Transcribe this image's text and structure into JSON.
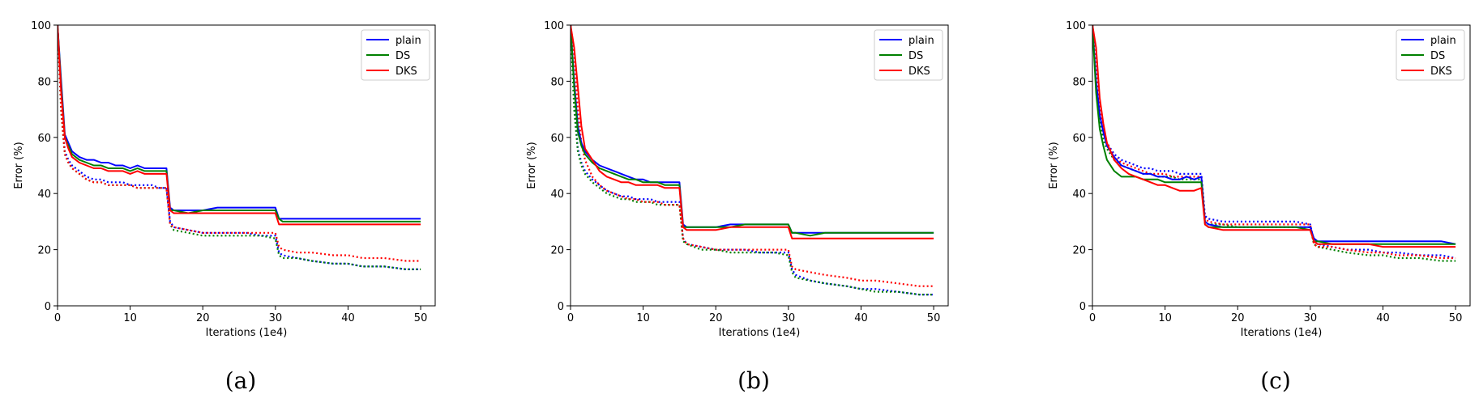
{
  "chart_data": [
    {
      "type": "line",
      "caption": "(a)",
      "xlabel": "Iterations (1e4)",
      "ylabel": "Error (%)",
      "xlim": [
        0,
        52
      ],
      "ylim": [
        0,
        100
      ],
      "xticks": [
        "0",
        "10",
        "20",
        "30",
        "40",
        "50"
      ],
      "yticks": [
        "0",
        "20",
        "40",
        "60",
        "80",
        "100"
      ],
      "legend": {
        "position": "top-right",
        "entries": [
          "plain",
          "DS",
          "DKS"
        ]
      },
      "colors": {
        "plain": "#0000ff",
        "DS": "#008000",
        "DKS": "#ff0000"
      },
      "x": [
        0,
        0.5,
        1,
        1.5,
        2,
        3,
        4,
        5,
        6,
        7,
        8,
        9,
        10,
        11,
        12,
        13,
        14,
        15,
        15.5,
        16,
        18,
        20,
        22,
        24,
        26,
        28,
        30,
        30.5,
        31,
        33,
        35,
        38,
        40,
        42,
        45,
        48,
        50
      ],
      "series": [
        {
          "name": "plain",
          "style": "solid",
          "values": [
            100,
            80,
            61,
            58,
            55,
            53,
            52,
            52,
            51,
            51,
            50,
            50,
            49,
            50,
            49,
            49,
            49,
            49,
            35,
            34,
            34,
            34,
            35,
            35,
            35,
            35,
            35,
            31,
            31,
            31,
            31,
            31,
            31,
            31,
            31,
            31,
            31
          ]
        },
        {
          "name": "DS",
          "style": "solid",
          "values": [
            100,
            78,
            60,
            57,
            54,
            52,
            51,
            50,
            50,
            49,
            49,
            49,
            48,
            49,
            48,
            48,
            48,
            48,
            34,
            34,
            33,
            34,
            34,
            34,
            34,
            34,
            34,
            31,
            30,
            30,
            30,
            30,
            30,
            30,
            30,
            30,
            30
          ]
        },
        {
          "name": "DKS",
          "style": "solid",
          "values": [
            100,
            76,
            60,
            56,
            53,
            51,
            50,
            49,
            49,
            48,
            48,
            48,
            47,
            48,
            47,
            47,
            47,
            47,
            34,
            33,
            33,
            33,
            33,
            33,
            33,
            33,
            33,
            29,
            29,
            29,
            29,
            29,
            29,
            29,
            29,
            29,
            29
          ]
        },
        {
          "name": "plain",
          "style": "dotted",
          "values": [
            100,
            70,
            55,
            52,
            50,
            48,
            46,
            45,
            45,
            44,
            44,
            44,
            43,
            43,
            43,
            43,
            42,
            42,
            30,
            28,
            27,
            26,
            26,
            26,
            26,
            25,
            25,
            19,
            18,
            17,
            16,
            15,
            15,
            14,
            14,
            13,
            13
          ]
        },
        {
          "name": "DS",
          "style": "dotted",
          "values": [
            100,
            69,
            54,
            51,
            49,
            47,
            45,
            44,
            44,
            43,
            43,
            43,
            43,
            42,
            42,
            42,
            42,
            42,
            29,
            27,
            26,
            25,
            25,
            25,
            25,
            25,
            24,
            18,
            17,
            17,
            16,
            15,
            15,
            14,
            14,
            13,
            13
          ]
        },
        {
          "name": "DKS",
          "style": "dotted",
          "values": [
            100,
            70,
            54,
            51,
            49,
            47,
            45,
            44,
            44,
            43,
            43,
            43,
            43,
            42,
            42,
            42,
            42,
            42,
            29,
            28,
            27,
            26,
            26,
            26,
            26,
            26,
            26,
            21,
            20,
            19,
            19,
            18,
            18,
            17,
            17,
            16,
            16
          ]
        }
      ]
    },
    {
      "type": "line",
      "caption": "(b)",
      "xlabel": "Iterations (1e4)",
      "ylabel": "Error (%)",
      "xlim": [
        0,
        52
      ],
      "ylim": [
        0,
        100
      ],
      "xticks": [
        "0",
        "10",
        "20",
        "30",
        "40",
        "50"
      ],
      "yticks": [
        "0",
        "20",
        "40",
        "60",
        "80",
        "100"
      ],
      "legend": {
        "position": "top-right",
        "entries": [
          "plain",
          "DS",
          "DKS"
        ]
      },
      "colors": {
        "plain": "#0000ff",
        "DS": "#008000",
        "DKS": "#ff0000"
      },
      "x": [
        0,
        0.5,
        1,
        1.5,
        2,
        3,
        4,
        5,
        6,
        7,
        8,
        9,
        10,
        11,
        12,
        13,
        14,
        15,
        15.5,
        16,
        18,
        20,
        22,
        24,
        26,
        28,
        30,
        30.5,
        31,
        33,
        35,
        38,
        40,
        42,
        45,
        48,
        50
      ],
      "series": [
        {
          "name": "plain",
          "style": "solid",
          "values": [
            100,
            80,
            64,
            58,
            55,
            52,
            50,
            49,
            48,
            47,
            46,
            45,
            45,
            44,
            44,
            44,
            44,
            44,
            29,
            28,
            28,
            28,
            29,
            29,
            29,
            29,
            29,
            26,
            26,
            26,
            26,
            26,
            26,
            26,
            26,
            26,
            26
          ]
        },
        {
          "name": "DS",
          "style": "solid",
          "values": [
            100,
            78,
            62,
            57,
            54,
            51,
            49,
            48,
            47,
            46,
            45,
            45,
            44,
            44,
            44,
            43,
            43,
            43,
            28,
            28,
            28,
            28,
            28,
            29,
            29,
            29,
            29,
            26,
            26,
            25,
            26,
            26,
            26,
            26,
            26,
            26,
            26
          ]
        },
        {
          "name": "DKS",
          "style": "solid",
          "values": [
            100,
            92,
            78,
            64,
            56,
            52,
            48,
            46,
            45,
            44,
            44,
            43,
            43,
            43,
            43,
            42,
            42,
            42,
            28,
            27,
            27,
            27,
            28,
            28,
            28,
            28,
            28,
            24,
            24,
            24,
            24,
            24,
            24,
            24,
            24,
            24,
            24
          ]
        },
        {
          "name": "plain",
          "style": "dotted",
          "values": [
            100,
            72,
            56,
            51,
            48,
            45,
            43,
            41,
            40,
            39,
            39,
            38,
            38,
            38,
            37,
            37,
            37,
            37,
            24,
            22,
            21,
            20,
            20,
            20,
            19,
            19,
            19,
            13,
            11,
            9,
            8,
            7,
            6,
            6,
            5,
            4,
            4
          ]
        },
        {
          "name": "DS",
          "style": "dotted",
          "values": [
            100,
            70,
            55,
            50,
            47,
            44,
            42,
            40,
            39,
            38,
            38,
            37,
            37,
            37,
            36,
            36,
            36,
            36,
            23,
            22,
            20,
            20,
            19,
            19,
            19,
            19,
            18,
            12,
            10,
            9,
            8,
            7,
            6,
            5,
            5,
            4,
            4
          ]
        },
        {
          "name": "DKS",
          "style": "dotted",
          "values": [
            100,
            90,
            70,
            58,
            52,
            46,
            43,
            41,
            40,
            39,
            38,
            38,
            37,
            37,
            37,
            36,
            36,
            36,
            24,
            22,
            21,
            20,
            20,
            20,
            20,
            20,
            20,
            14,
            13,
            12,
            11,
            10,
            9,
            9,
            8,
            7,
            7
          ]
        }
      ]
    },
    {
      "type": "line",
      "caption": "(c)",
      "xlabel": "Iterations (1e4)",
      "ylabel": "Error (%)",
      "xlim": [
        0,
        52
      ],
      "ylim": [
        0,
        100
      ],
      "xticks": [
        "0",
        "10",
        "20",
        "30",
        "40",
        "50"
      ],
      "yticks": [
        "0",
        "20",
        "40",
        "60",
        "80",
        "100"
      ],
      "legend": {
        "position": "top-right",
        "entries": [
          "plain",
          "DS",
          "DKS"
        ]
      },
      "colors": {
        "plain": "#0000ff",
        "DS": "#008000",
        "DKS": "#ff0000"
      },
      "x": [
        0,
        0.5,
        1,
        1.5,
        2,
        3,
        4,
        5,
        6,
        7,
        8,
        9,
        10,
        11,
        12,
        13,
        14,
        15,
        15.5,
        16,
        18,
        20,
        22,
        24,
        26,
        28,
        30,
        30.5,
        31,
        33,
        35,
        38,
        40,
        42,
        45,
        48,
        50
      ],
      "series": [
        {
          "name": "plain",
          "style": "solid",
          "values": [
            100,
            80,
            68,
            62,
            57,
            53,
            50,
            49,
            48,
            47,
            47,
            46,
            46,
            45,
            45,
            46,
            45,
            46,
            30,
            29,
            28,
            28,
            28,
            28,
            28,
            28,
            28,
            24,
            23,
            23,
            23,
            23,
            23,
            23,
            23,
            23,
            22
          ]
        },
        {
          "name": "DS",
          "style": "solid",
          "values": [
            100,
            76,
            63,
            57,
            52,
            48,
            46,
            46,
            46,
            45,
            45,
            45,
            44,
            44,
            44,
            44,
            44,
            44,
            29,
            28,
            28,
            28,
            28,
            28,
            28,
            28,
            27,
            23,
            23,
            22,
            22,
            22,
            22,
            22,
            22,
            22,
            22
          ]
        },
        {
          "name": "DKS",
          "style": "solid",
          "values": [
            100,
            92,
            74,
            65,
            58,
            52,
            49,
            47,
            46,
            45,
            44,
            43,
            43,
            42,
            41,
            41,
            41,
            42,
            29,
            28,
            27,
            27,
            27,
            27,
            27,
            27,
            27,
            23,
            22,
            22,
            22,
            22,
            21,
            21,
            21,
            21,
            21
          ]
        },
        {
          "name": "plain",
          "style": "dotted",
          "values": [
            100,
            82,
            68,
            61,
            58,
            54,
            52,
            51,
            50,
            49,
            49,
            48,
            48,
            48,
            47,
            47,
            47,
            47,
            32,
            31,
            30,
            30,
            30,
            30,
            30,
            30,
            29,
            23,
            22,
            21,
            20,
            20,
            19,
            19,
            18,
            18,
            17
          ]
        },
        {
          "name": "DS",
          "style": "dotted",
          "values": [
            100,
            80,
            66,
            59,
            56,
            52,
            50,
            49,
            48,
            47,
            47,
            46,
            46,
            46,
            45,
            45,
            45,
            45,
            30,
            29,
            29,
            28,
            28,
            28,
            28,
            28,
            28,
            22,
            21,
            20,
            19,
            18,
            18,
            17,
            17,
            16,
            16
          ]
        },
        {
          "name": "DKS",
          "style": "dotted",
          "values": [
            100,
            84,
            70,
            62,
            58,
            53,
            51,
            50,
            49,
            48,
            47,
            47,
            47,
            46,
            46,
            46,
            46,
            46,
            31,
            30,
            29,
            29,
            29,
            29,
            29,
            29,
            29,
            22,
            21,
            21,
            20,
            19,
            19,
            18,
            18,
            17,
            17
          ]
        }
      ]
    }
  ]
}
